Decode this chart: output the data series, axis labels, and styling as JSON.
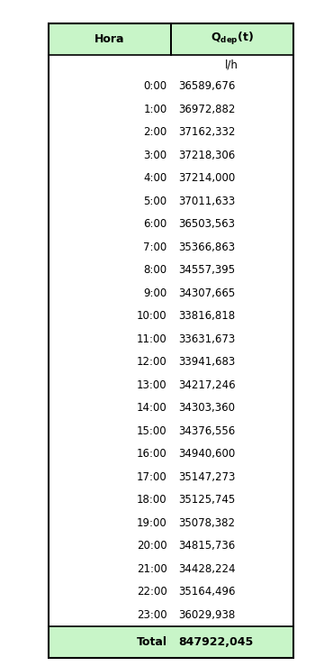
{
  "col1_header": "Hora",
  "col2_header": "Q$_{dep}$(t)",
  "col2_unit": "l/h",
  "hours": [
    "0:00",
    "1:00",
    "2:00",
    "3:00",
    "4:00",
    "5:00",
    "6:00",
    "7:00",
    "8:00",
    "9:00",
    "10:00",
    "11:00",
    "12:00",
    "13:00",
    "14:00",
    "15:00",
    "16:00",
    "17:00",
    "18:00",
    "19:00",
    "20:00",
    "21:00",
    "22:00",
    "23:00"
  ],
  "values": [
    "36589,676",
    "36972,882",
    "37162,332",
    "37218,306",
    "37214,000",
    "37011,633",
    "36503,563",
    "35366,863",
    "34557,395",
    "34307,665",
    "33816,818",
    "33631,673",
    "33941,683",
    "34217,246",
    "34303,360",
    "34376,556",
    "34940,600",
    "35147,273",
    "35125,745",
    "35078,382",
    "34815,736",
    "34428,224",
    "35164,496",
    "36029,938"
  ],
  "total_label": "Total",
  "total_value": "847922,045",
  "header_bg": "#c8f5c8",
  "total_bg": "#c8f5c8",
  "border_color": "#000000",
  "text_color": "#000000",
  "bg_color": "#ffffff"
}
